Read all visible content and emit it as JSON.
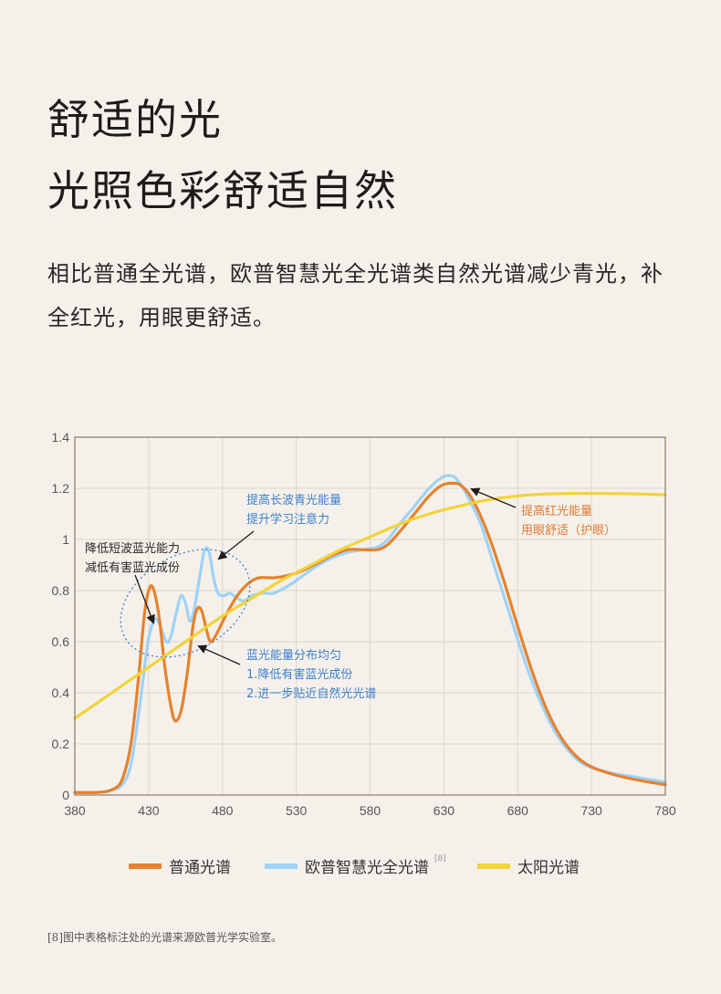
{
  "header": {
    "title_line1": "舒适的光",
    "title_line2": "光照色彩舒适自然",
    "description": "相比普通全光谱，欧普智慧光全光谱类自然光谱减少青光，补全红光，用眼更舒适。"
  },
  "colors": {
    "normal": "#e5822e",
    "opple": "#9fd2f7",
    "sun": "#f2d33a",
    "annotation_blue": "#3d7fcc",
    "annotation_orange": "#e07a35",
    "grid": "#dcd6cd",
    "frame": "#8a7a66"
  },
  "chart_data": {
    "type": "line",
    "title": "",
    "xlabel": "",
    "ylabel": "",
    "xlim": [
      380,
      780
    ],
    "ylim": [
      0,
      1.4
    ],
    "x_ticks": [
      "380",
      "430",
      "480",
      "530",
      "580",
      "630",
      "680",
      "730",
      "780"
    ],
    "y_ticks": [
      "0",
      "0.2",
      "0.4",
      "0.6",
      "0.8",
      "1",
      "1.2",
      "1.4"
    ],
    "grid": true,
    "series": [
      {
        "name": "普通光谱",
        "color": "#e5822e",
        "points": [
          [
            380,
            0.01
          ],
          [
            395,
            0.01
          ],
          [
            405,
            0.02
          ],
          [
            412,
            0.06
          ],
          [
            418,
            0.2
          ],
          [
            423,
            0.45
          ],
          [
            427,
            0.7
          ],
          [
            430,
            0.8
          ],
          [
            433,
            0.81
          ],
          [
            437,
            0.7
          ],
          [
            441,
            0.5
          ],
          [
            445,
            0.35
          ],
          [
            448,
            0.29
          ],
          [
            452,
            0.33
          ],
          [
            456,
            0.47
          ],
          [
            460,
            0.66
          ],
          [
            463,
            0.73
          ],
          [
            466,
            0.72
          ],
          [
            469,
            0.65
          ],
          [
            472,
            0.6
          ],
          [
            476,
            0.63
          ],
          [
            482,
            0.7
          ],
          [
            490,
            0.78
          ],
          [
            498,
            0.83
          ],
          [
            505,
            0.85
          ],
          [
            515,
            0.85
          ],
          [
            525,
            0.86
          ],
          [
            535,
            0.88
          ],
          [
            545,
            0.91
          ],
          [
            555,
            0.94
          ],
          [
            565,
            0.96
          ],
          [
            575,
            0.96
          ],
          [
            585,
            0.96
          ],
          [
            592,
            0.98
          ],
          [
            600,
            1.03
          ],
          [
            610,
            1.1
          ],
          [
            620,
            1.17
          ],
          [
            628,
            1.21
          ],
          [
            635,
            1.22
          ],
          [
            642,
            1.21
          ],
          [
            650,
            1.15
          ],
          [
            660,
            1.02
          ],
          [
            670,
            0.85
          ],
          [
            680,
            0.66
          ],
          [
            690,
            0.48
          ],
          [
            700,
            0.33
          ],
          [
            710,
            0.22
          ],
          [
            720,
            0.15
          ],
          [
            730,
            0.11
          ],
          [
            745,
            0.08
          ],
          [
            760,
            0.06
          ],
          [
            780,
            0.04
          ]
        ]
      },
      {
        "name": "欧普智慧光全光谱",
        "color": "#9fd2f7",
        "points": [
          [
            380,
            0.01
          ],
          [
            395,
            0.01
          ],
          [
            405,
            0.02
          ],
          [
            412,
            0.04
          ],
          [
            418,
            0.12
          ],
          [
            424,
            0.35
          ],
          [
            429,
            0.58
          ],
          [
            432,
            0.66
          ],
          [
            435,
            0.69
          ],
          [
            438,
            0.66
          ],
          [
            442,
            0.6
          ],
          [
            445,
            0.62
          ],
          [
            449,
            0.72
          ],
          [
            452,
            0.78
          ],
          [
            455,
            0.75
          ],
          [
            458,
            0.68
          ],
          [
            461,
            0.73
          ],
          [
            465,
            0.87
          ],
          [
            468,
            0.96
          ],
          [
            471,
            0.95
          ],
          [
            474,
            0.85
          ],
          [
            477,
            0.79
          ],
          [
            481,
            0.78
          ],
          [
            485,
            0.79
          ],
          [
            490,
            0.77
          ],
          [
            495,
            0.76
          ],
          [
            500,
            0.78
          ],
          [
            508,
            0.79
          ],
          [
            515,
            0.79
          ],
          [
            525,
            0.82
          ],
          [
            535,
            0.86
          ],
          [
            545,
            0.9
          ],
          [
            555,
            0.93
          ],
          [
            565,
            0.95
          ],
          [
            575,
            0.96
          ],
          [
            585,
            0.97
          ],
          [
            592,
            1.0
          ],
          [
            600,
            1.06
          ],
          [
            610,
            1.13
          ],
          [
            620,
            1.2
          ],
          [
            628,
            1.24
          ],
          [
            633,
            1.25
          ],
          [
            638,
            1.24
          ],
          [
            645,
            1.18
          ],
          [
            655,
            1.06
          ],
          [
            665,
            0.88
          ],
          [
            675,
            0.7
          ],
          [
            685,
            0.52
          ],
          [
            695,
            0.37
          ],
          [
            705,
            0.25
          ],
          [
            715,
            0.17
          ],
          [
            725,
            0.12
          ],
          [
            740,
            0.09
          ],
          [
            760,
            0.07
          ],
          [
            780,
            0.05
          ]
        ]
      },
      {
        "name": "太阳光谱",
        "color": "#f2d33a",
        "points": [
          [
            380,
            0.3
          ],
          [
            400,
            0.38
          ],
          [
            420,
            0.46
          ],
          [
            440,
            0.54
          ],
          [
            460,
            0.62
          ],
          [
            480,
            0.7
          ],
          [
            500,
            0.77
          ],
          [
            520,
            0.84
          ],
          [
            540,
            0.9
          ],
          [
            560,
            0.96
          ],
          [
            580,
            1.01
          ],
          [
            600,
            1.06
          ],
          [
            620,
            1.1
          ],
          [
            640,
            1.13
          ],
          [
            660,
            1.155
          ],
          [
            680,
            1.17
          ],
          [
            700,
            1.178
          ],
          [
            720,
            1.18
          ],
          [
            740,
            1.18
          ],
          [
            760,
            1.178
          ],
          [
            780,
            1.175
          ]
        ]
      }
    ],
    "annotations": [
      {
        "lines": [
          "降低短波蓝光能力",
          "减低有害蓝光成份"
        ],
        "color": "#2a2624"
      },
      {
        "lines": [
          "提高长波青光能量",
          "提升学习注意力"
        ],
        "color": "#3d7fcc"
      },
      {
        "lines": [
          "提高红光能量",
          "用眼舒适（护眼）"
        ],
        "color": "#e07a35"
      },
      {
        "lines": [
          "蓝光能量分布均匀",
          "1.降低有害蓝光成份",
          "2.进一步贴近自然光光谱"
        ],
        "color": "#3d7fcc"
      }
    ],
    "legend_position": "bottom"
  },
  "legend": {
    "items": [
      {
        "label": "普通光谱"
      },
      {
        "label": "欧普智慧光全光谱"
      },
      {
        "label": "太阳光谱"
      }
    ],
    "superscript": "[8]"
  },
  "footnote": "[8]图中表格标注处的光谱来源欧普光学实验室。"
}
